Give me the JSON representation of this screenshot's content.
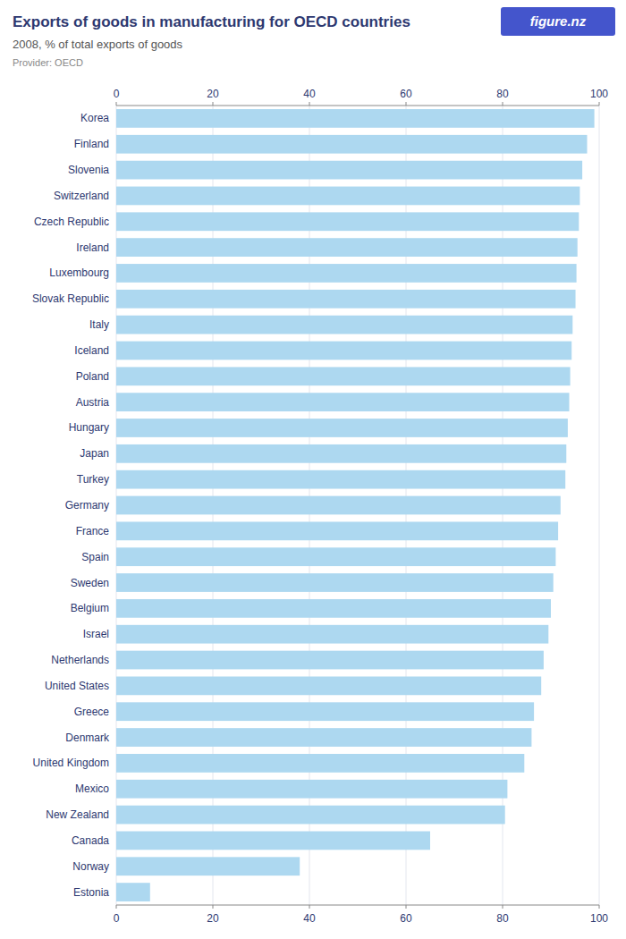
{
  "chart_data": {
    "type": "bar",
    "orientation": "horizontal",
    "title": "Exports of goods in manufacturing for OECD countries",
    "subtitle": "2008, % of total exports of goods",
    "annotations": [
      "Provider: OECD",
      "figure.nz"
    ],
    "color": "#add8f0",
    "categories": [
      "Korea",
      "Finland",
      "Slovenia",
      "Switzerland",
      "Czech Republic",
      "Ireland",
      "Luxembourg",
      "Slovak Republic",
      "Italy",
      "Iceland",
      "Poland",
      "Austria",
      "Hungary",
      "Japan",
      "Turkey",
      "Germany",
      "France",
      "Spain",
      "Sweden",
      "Belgium",
      "Israel",
      "Netherlands",
      "United States",
      "Greece",
      "Denmark",
      "United Kingdom",
      "Mexico",
      "New Zealand",
      "Canada",
      "Norway",
      "Estonia"
    ],
    "values": [
      99.0,
      97.5,
      96.5,
      96.0,
      95.8,
      95.5,
      95.3,
      95.1,
      94.5,
      94.3,
      94.0,
      93.8,
      93.5,
      93.2,
      93.0,
      92.0,
      91.5,
      91.0,
      90.5,
      90.0,
      89.5,
      88.5,
      88.0,
      86.5,
      86.0,
      84.5,
      81.0,
      80.5,
      65.0,
      38.0,
      7.0
    ],
    "xlim": [
      0,
      100
    ],
    "xticks": [
      0,
      20,
      40,
      60,
      80,
      100
    ],
    "grid": true
  }
}
